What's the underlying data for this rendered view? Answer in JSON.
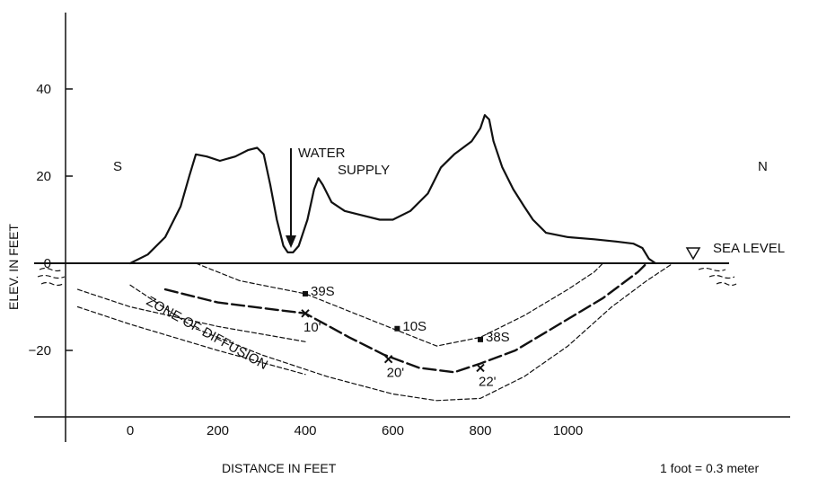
{
  "chart_data": {
    "type": "line",
    "xlabel": "DISTANCE IN FEET",
    "ylabel": "ELEV. IN FEET",
    "xlim": [
      -150,
      1230
    ],
    "ylim": [
      -36,
      56
    ],
    "x_ticks": [
      0,
      200,
      400,
      600,
      800,
      1000
    ],
    "x_tick_labels": [
      "0",
      "200",
      "400",
      "600",
      "800",
      "1000"
    ],
    "y_ticks": [
      40,
      20,
      0,
      -20
    ],
    "y_tick_labels": [
      "40",
      "20",
      "0",
      "−20"
    ],
    "annotations": {
      "south": "S",
      "north": "N",
      "water_supply": [
        "WATER",
        "SUPPLY"
      ],
      "sea_level": "SEA LEVEL",
      "zone": "ZONE OF DIFFUSION",
      "conversion": "1 foot = 0.3 meter"
    },
    "series": [
      {
        "role": "ground-surface",
        "style": "solid",
        "points": [
          [
            0,
            0
          ],
          [
            40,
            2
          ],
          [
            80,
            6
          ],
          [
            115,
            13
          ],
          [
            135,
            20
          ],
          [
            150,
            25
          ],
          [
            175,
            24.5
          ],
          [
            205,
            23.5
          ],
          [
            240,
            24.5
          ],
          [
            270,
            26
          ],
          [
            290,
            26.5
          ],
          [
            305,
            25
          ],
          [
            320,
            18
          ],
          [
            335,
            10
          ],
          [
            350,
            4
          ],
          [
            360,
            2.5
          ],
          [
            372,
            2.5
          ],
          [
            385,
            4
          ],
          [
            405,
            10
          ],
          [
            420,
            17
          ],
          [
            430,
            19.5
          ],
          [
            440,
            18
          ],
          [
            460,
            14
          ],
          [
            490,
            12
          ],
          [
            530,
            11
          ],
          [
            570,
            10
          ],
          [
            600,
            10
          ],
          [
            640,
            12
          ],
          [
            680,
            16
          ],
          [
            710,
            22
          ],
          [
            740,
            25
          ],
          [
            780,
            28
          ],
          [
            800,
            31
          ],
          [
            810,
            34
          ],
          [
            820,
            33
          ],
          [
            830,
            28
          ],
          [
            850,
            22
          ],
          [
            875,
            17
          ],
          [
            900,
            13
          ],
          [
            920,
            10
          ],
          [
            950,
            7
          ],
          [
            1000,
            6
          ],
          [
            1060,
            5.5
          ],
          [
            1110,
            5
          ],
          [
            1150,
            4.5
          ],
          [
            1170,
            3.5
          ],
          [
            1185,
            1
          ],
          [
            1200,
            0
          ]
        ]
      },
      {
        "role": "zone-upper",
        "style": "fine-dash",
        "points": [
          [
            150,
            0
          ],
          [
            250,
            -4
          ],
          [
            400,
            -7
          ],
          [
            550,
            -13
          ],
          [
            700,
            -19
          ],
          [
            800,
            -17
          ],
          [
            900,
            -12
          ],
          [
            1000,
            -6
          ],
          [
            1060,
            -2
          ],
          [
            1080,
            0
          ]
        ]
      },
      {
        "role": "water-table",
        "style": "long-dash",
        "points": [
          [
            80,
            -6
          ],
          [
            200,
            -9
          ],
          [
            400,
            -11.5
          ],
          [
            500,
            -17
          ],
          [
            580,
            -21
          ],
          [
            660,
            -24
          ],
          [
            740,
            -25
          ],
          [
            800,
            -23
          ],
          [
            880,
            -20
          ],
          [
            980,
            -14
          ],
          [
            1080,
            -8
          ],
          [
            1160,
            -2
          ],
          [
            1180,
            0
          ]
        ]
      },
      {
        "role": "zone-lower",
        "style": "fine-dash",
        "points": [
          [
            0,
            -5
          ],
          [
            150,
            -15
          ],
          [
            300,
            -21
          ],
          [
            450,
            -26
          ],
          [
            600,
            -30
          ],
          [
            700,
            -31.5
          ],
          [
            800,
            -31
          ],
          [
            900,
            -26
          ],
          [
            1000,
            -19
          ],
          [
            1100,
            -10
          ],
          [
            1180,
            -4
          ],
          [
            1240,
            0
          ]
        ]
      },
      {
        "role": "zone-text-guide",
        "style": "fine-dash",
        "points": [
          [
            -120,
            -6
          ],
          [
            0,
            -10
          ],
          [
            200,
            -14.5
          ],
          [
            400,
            -18
          ]
        ]
      },
      {
        "role": "zone-text-guide",
        "style": "fine-dash",
        "points": [
          [
            -120,
            -10
          ],
          [
            0,
            -14
          ],
          [
            200,
            -20
          ],
          [
            400,
            -25.5
          ]
        ]
      }
    ],
    "wells": [
      {
        "label": "39S",
        "x": 400,
        "y": -7
      },
      {
        "label": "10S",
        "x": 610,
        "y": -15
      },
      {
        "label": "38S",
        "x": 800,
        "y": -17.5
      }
    ],
    "water_levels": [
      {
        "label": "10'",
        "x": 400,
        "y": -11.5
      },
      {
        "label": "20'",
        "x": 590,
        "y": -22
      },
      {
        "label": "22'",
        "x": 800,
        "y": -24
      }
    ]
  }
}
